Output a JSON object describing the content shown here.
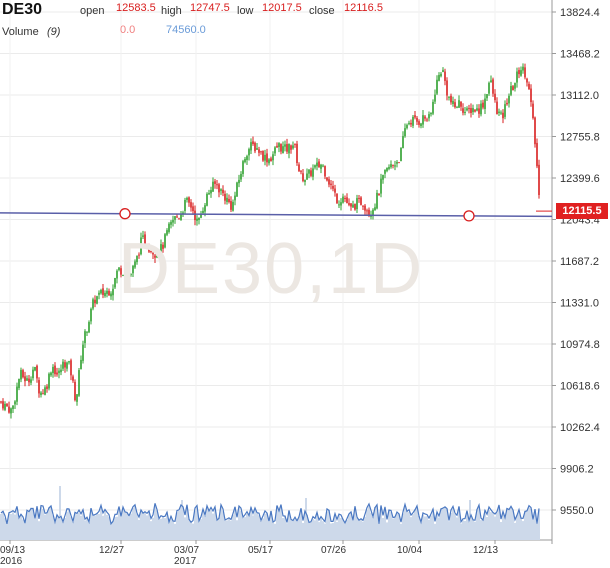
{
  "header": {
    "symbol": "DE30",
    "open_label": "open",
    "open_value": "12583.5",
    "high_label": "high",
    "high_value": "12747.5",
    "low_label": "low",
    "low_value": "12017.5",
    "close_label": "close",
    "close_value": "12116.5",
    "volume_label": "Volume",
    "volume_period": "(9)",
    "volume_value": "0.0",
    "volume_ma_value": "74560.0"
  },
  "watermark": "DE30,1D",
  "current_price": "12115.5",
  "colors": {
    "up": "#2ca02c",
    "down": "#d81e1e",
    "trendline": "#5a5fa8",
    "volume_fill": "#b8cbe4",
    "volume_line": "#4a78c2",
    "price_tag": "#e02020"
  },
  "chart_data": {
    "type": "candlestick",
    "x_tick_labels": [
      "09/13",
      "12/27",
      "03/07",
      "05/17",
      "07/26",
      "10/04",
      "12/13"
    ],
    "x_year_labels": [
      {
        "at": "09/13",
        "label": "2016"
      },
      {
        "at": "03/07",
        "label": "2017"
      }
    ],
    "y_tick_labels": [
      "13824.4",
      "13468.2",
      "13112.0",
      "12755.8",
      "12399.6",
      "12043.4",
      "11687.2",
      "11331.0",
      "10974.8",
      "10618.6",
      "10262.4",
      "9906.2",
      "9550.0"
    ],
    "ylim": [
      9550.0,
      13824.4
    ],
    "last_close": 12115.5,
    "trendline": {
      "start_value": 12100,
      "end_value": 12070
    },
    "price_anchors": [
      [
        0,
        10480
      ],
      [
        12,
        10400
      ],
      [
        20,
        10720
      ],
      [
        28,
        10650
      ],
      [
        34,
        10780
      ],
      [
        40,
        10550
      ],
      [
        46,
        10600
      ],
      [
        52,
        10800
      ],
      [
        58,
        10700
      ],
      [
        64,
        10820
      ],
      [
        70,
        10780
      ],
      [
        76,
        10480
      ],
      [
        82,
        10950
      ],
      [
        88,
        11150
      ],
      [
        94,
        11350
      ],
      [
        100,
        11400
      ],
      [
        106,
        11420
      ],
      [
        112,
        11450
      ],
      [
        118,
        11620
      ],
      [
        124,
        11600
      ],
      [
        130,
        11560
      ],
      [
        136,
        11680
      ],
      [
        142,
        11880
      ],
      [
        148,
        11820
      ],
      [
        156,
        11750
      ],
      [
        162,
        11800
      ],
      [
        168,
        11950
      ],
      [
        174,
        12050
      ],
      [
        180,
        12080
      ],
      [
        186,
        12200
      ],
      [
        192,
        12150
      ],
      [
        198,
        12000
      ],
      [
        204,
        12180
      ],
      [
        210,
        12300
      ],
      [
        216,
        12350
      ],
      [
        224,
        12250
      ],
      [
        232,
        12150
      ],
      [
        240,
        12420
      ],
      [
        246,
        12620
      ],
      [
        252,
        12680
      ],
      [
        258,
        12650
      ],
      [
        264,
        12580
      ],
      [
        270,
        12560
      ],
      [
        278,
        12680
      ],
      [
        286,
        12640
      ],
      [
        294,
        12700
      ],
      [
        300,
        12420
      ],
      [
        306,
        12400
      ],
      [
        314,
        12480
      ],
      [
        322,
        12520
      ],
      [
        330,
        12350
      ],
      [
        338,
        12200
      ],
      [
        344,
        12250
      ],
      [
        350,
        12120
      ],
      [
        356,
        12180
      ],
      [
        362,
        12200
      ],
      [
        370,
        12100
      ],
      [
        376,
        12200
      ],
      [
        382,
        12380
      ],
      [
        388,
        12480
      ],
      [
        394,
        12520
      ],
      [
        400,
        12580
      ],
      [
        406,
        12860
      ],
      [
        412,
        12900
      ],
      [
        418,
        12880
      ],
      [
        424,
        12920
      ],
      [
        430,
        12900
      ],
      [
        436,
        13200
      ],
      [
        442,
        13350
      ],
      [
        448,
        13100
      ],
      [
        454,
        13000
      ],
      [
        460,
        13050
      ],
      [
        466,
        12950
      ],
      [
        472,
        13000
      ],
      [
        478,
        12980
      ],
      [
        484,
        13050
      ],
      [
        490,
        13250
      ],
      [
        496,
        13000
      ],
      [
        502,
        12900
      ],
      [
        508,
        13100
      ],
      [
        514,
        13200
      ],
      [
        520,
        13350
      ],
      [
        526,
        13300
      ],
      [
        530,
        13100
      ],
      [
        534,
        12800
      ],
      [
        537,
        12500
      ],
      [
        540,
        12116
      ]
    ]
  }
}
